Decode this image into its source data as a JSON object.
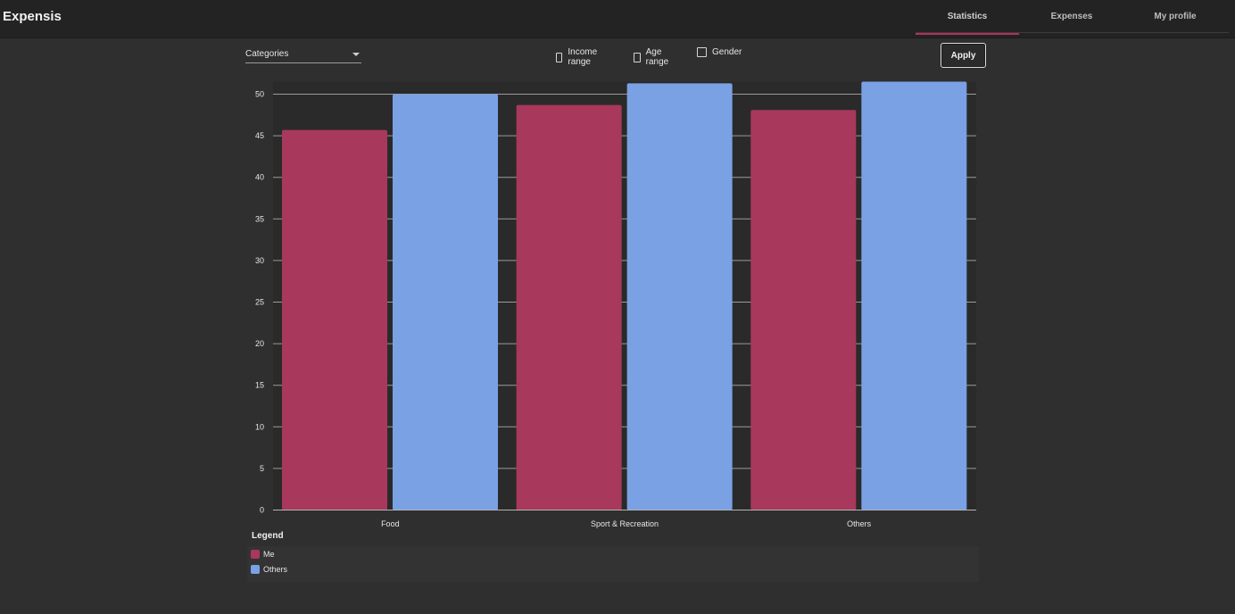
{
  "app": {
    "title": "Expensis"
  },
  "nav": {
    "tabs": [
      {
        "label": "Statistics",
        "active": true
      },
      {
        "label": "Expenses",
        "active": false
      },
      {
        "label": "My profile",
        "active": false
      }
    ]
  },
  "filters": {
    "category_select": {
      "value": "Categories"
    },
    "checkboxes": [
      {
        "label": "Income range",
        "checked": false
      },
      {
        "label": "Age range",
        "checked": false
      },
      {
        "label": "Gender",
        "checked": false
      }
    ],
    "apply_label": "Apply"
  },
  "chart_data": {
    "type": "bar",
    "categories": [
      "Food",
      "Sport & Recreation",
      "Others"
    ],
    "series": [
      {
        "name": "Me",
        "color": "#a8385c",
        "values": [
          45.7,
          48.7,
          48.1
        ]
      },
      {
        "name": "Others",
        "color": "#7aa1e4",
        "values": [
          50.0,
          51.3,
          51.5
        ]
      }
    ],
    "yticks": [
      0,
      5,
      10,
      15,
      20,
      25,
      30,
      35,
      40,
      45,
      50
    ],
    "ylim": [
      0,
      51.5
    ],
    "grid": true,
    "legend_title": "Legend",
    "legend_placement": "bottom"
  }
}
